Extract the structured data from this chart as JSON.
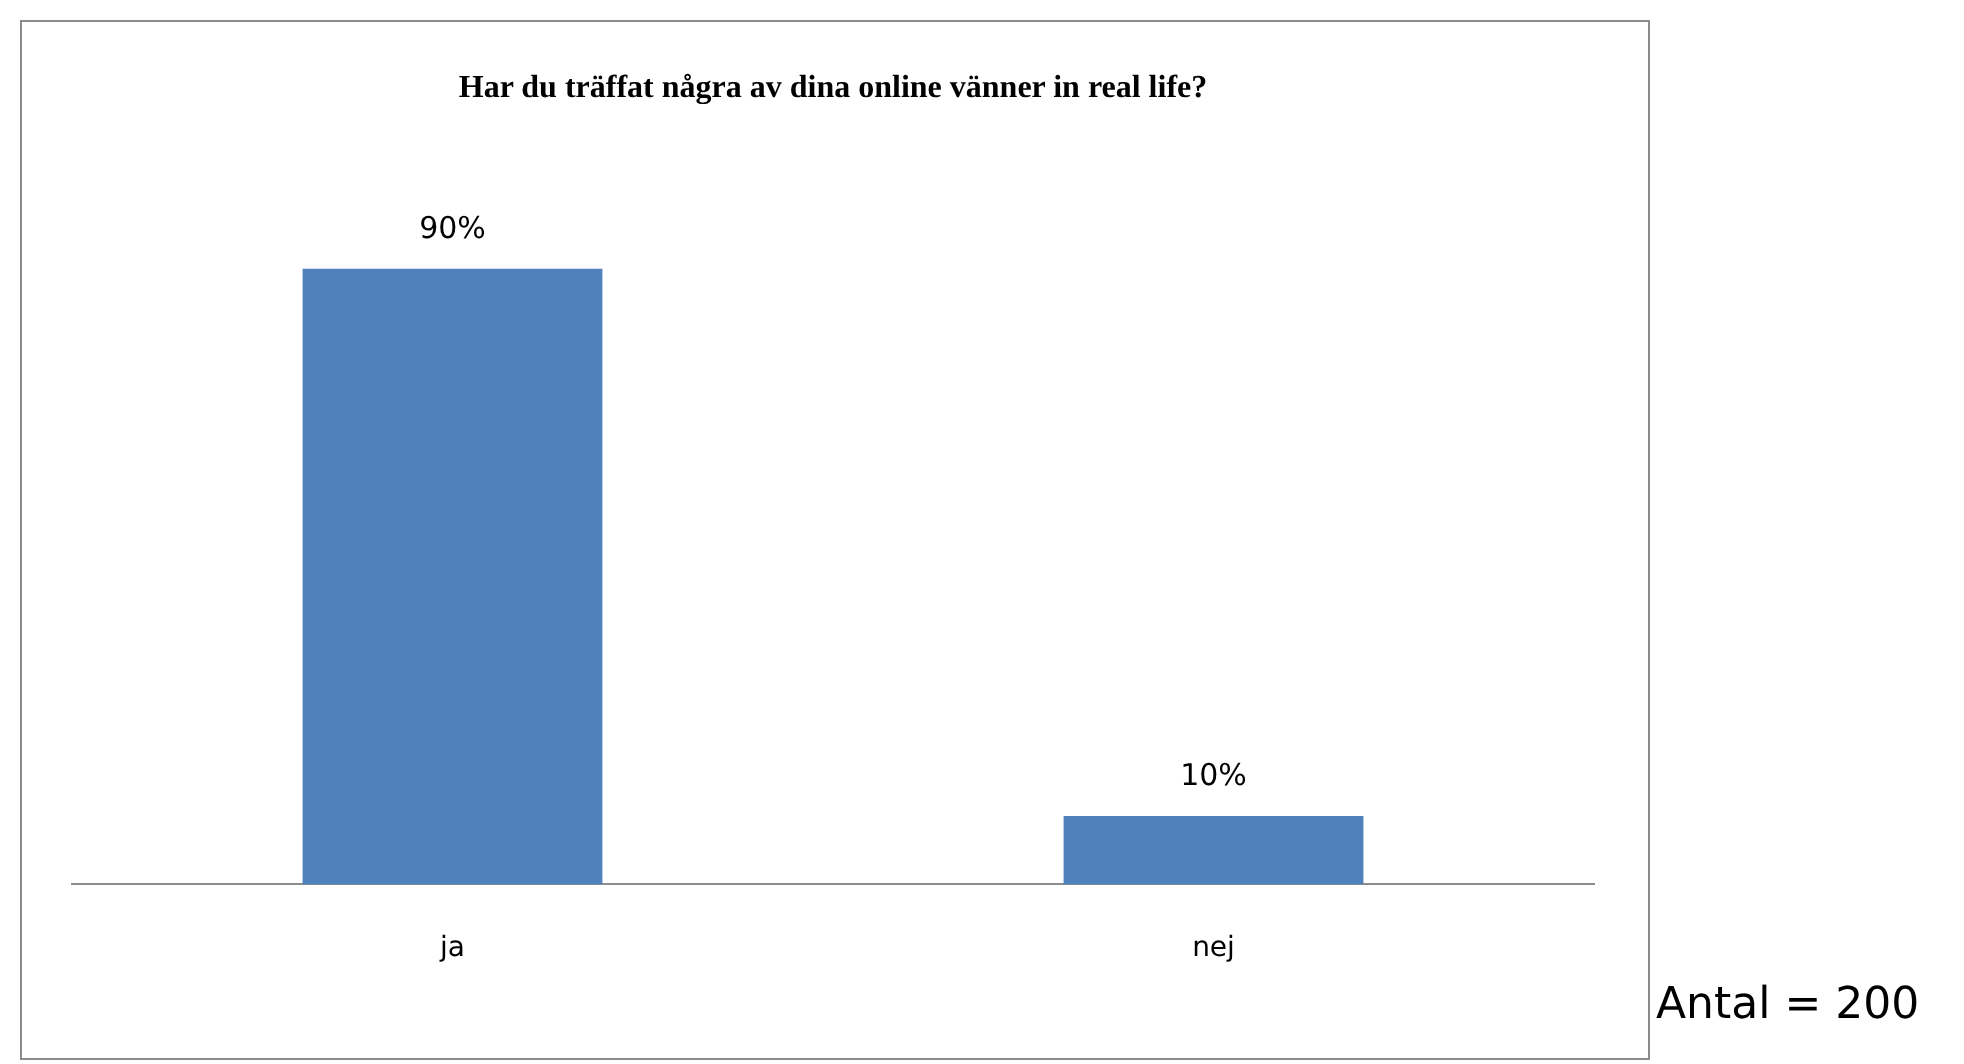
{
  "chart_data": {
    "type": "bar",
    "title": "Har du träffat några av dina online vänner in real life?",
    "categories": [
      "ja",
      "nej"
    ],
    "values": [
      90,
      10
    ],
    "color": "#4f81bd",
    "value_labels": [
      "90%",
      "10%"
    ],
    "tick_labels": "x",
    "grid": false,
    "legend": false,
    "annotations": [
      "Antal = 200"
    ]
  }
}
